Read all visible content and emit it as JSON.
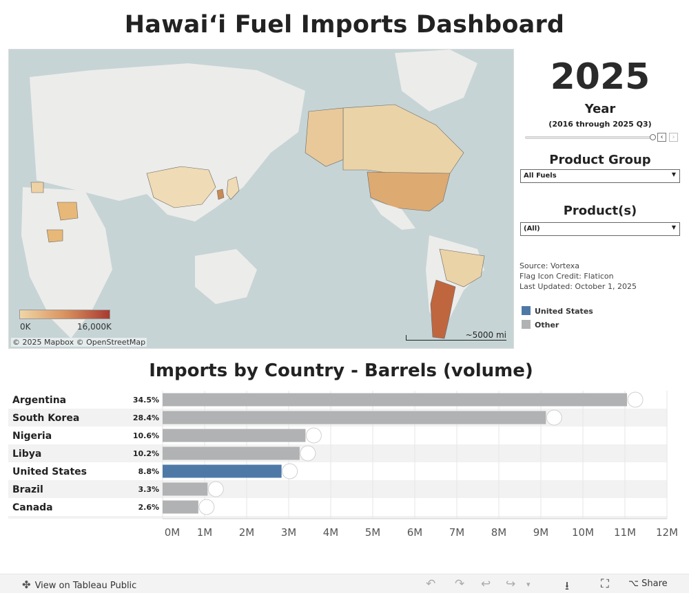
{
  "title": "Hawai‘i Fuel Imports Dashboard",
  "map": {
    "credit": "© 2025 Mapbox  © OpenStreetMap",
    "scale_label": "~5000 mi",
    "legend_min": "0K",
    "legend_max": "16,000K",
    "legend_colors": [
      "#f0d6a8",
      "#a83a32"
    ],
    "highlighted_countries": [
      "Argentina",
      "South Korea",
      "Nigeria",
      "Libya",
      "United States",
      "Brazil",
      "Canada",
      "China",
      "Japan",
      "Mexico"
    ]
  },
  "filters": {
    "year_value": "2025",
    "year_label": "Year",
    "year_range": "(2016 through 2025 Q3)",
    "prev_icon": "chevron-left-icon",
    "next_icon": "chevron-right-icon",
    "product_group_label": "Product Group",
    "product_group_value": "All Fuels",
    "products_label": "Product(s)",
    "products_value": "(All)"
  },
  "info": {
    "source": "Source: Vortexa",
    "flag_credit": "Flag Icon Credit: Flaticon",
    "updated": "Last Updated: October 1, 2025"
  },
  "legend": [
    {
      "label": "United States",
      "color": "#4e79a7"
    },
    {
      "label": "Other",
      "color": "#b0b2b3"
    }
  ],
  "chart_title": "Imports by Country - Barrels (volume)",
  "chart_data": {
    "type": "bar",
    "orientation": "horizontal",
    "categories": [
      "Argentina",
      "South Korea",
      "Nigeria",
      "Libya",
      "United States",
      "Brazil",
      "Canada"
    ],
    "values": [
      11050000,
      9120000,
      3400000,
      3260000,
      2830000,
      1070000,
      850000
    ],
    "percent_labels": [
      "34.5%",
      "28.4%",
      "10.6%",
      "10.2%",
      "8.8%",
      "3.3%",
      "2.6%"
    ],
    "colors": [
      "#b0b2b3",
      "#b0b2b3",
      "#b0b2b3",
      "#b0b2b3",
      "#4e79a7",
      "#b0b2b3",
      "#b0b2b3"
    ],
    "x_ticks": [
      "0M",
      "1M",
      "2M",
      "3M",
      "4M",
      "5M",
      "6M",
      "7M",
      "8M",
      "9M",
      "10M",
      "11M",
      "12M"
    ],
    "xlim": [
      0,
      12000000
    ],
    "grid": true,
    "xlabel": "",
    "ylabel": ""
  },
  "footer": {
    "view_label": "View on Tableau Public",
    "share_label": "Share"
  }
}
